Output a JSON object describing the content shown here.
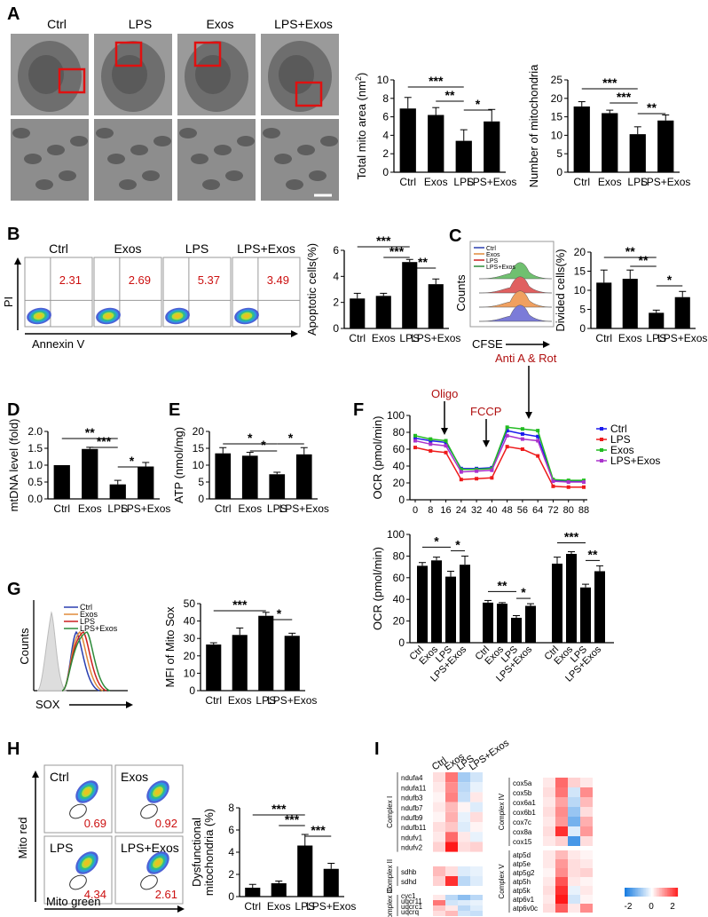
{
  "panels": {
    "A": {
      "letter": "A",
      "groups": [
        "Ctrl",
        "LPS",
        "Exos",
        "LPS+Exos"
      ],
      "area_chart": {
        "type": "bar",
        "ylabel": "Total mito area (nm",
        "ylabel_sup": "2",
        "ylabel_close": ")",
        "categories": [
          "Ctrl",
          "Exos",
          "LPS",
          "LPS+Exos"
        ],
        "values": [
          6.9,
          6.2,
          3.4,
          5.5
        ],
        "errors": [
          1.2,
          0.8,
          1.2,
          1.3
        ],
        "ylim": [
          0,
          10
        ],
        "ticks": [
          "0",
          "2",
          "4",
          "6",
          "8",
          "10"
        ],
        "sig": [
          "***",
          "**",
          "*"
        ]
      },
      "count_chart": {
        "type": "bar",
        "ylabel": "Number of mitochondria",
        "categories": [
          "Ctrl",
          "Exos",
          "LPS",
          "LPS+Exos"
        ],
        "values": [
          17.8,
          16.0,
          10.3,
          14.0
        ],
        "errors": [
          1.3,
          0.8,
          2.0,
          1.5
        ],
        "ylim": [
          0,
          25
        ],
        "ticks": [
          "0",
          "5",
          "10",
          "15",
          "20",
          "25"
        ],
        "sig": [
          "***",
          "***",
          "**"
        ]
      }
    },
    "B": {
      "letter": "B",
      "flow_titles": [
        "Ctrl",
        "Exos",
        "LPS",
        "LPS+Exos"
      ],
      "flow_values": [
        "2.31",
        "2.69",
        "5.37",
        "3.49"
      ],
      "yaxis": "PI",
      "xaxis": "Annexin V",
      "chart": {
        "type": "bar",
        "ylabel": "Apoptotic cells(%)",
        "categories": [
          "Ctrl",
          "Exos",
          "LPS",
          "LPS+Exos"
        ],
        "values": [
          2.3,
          2.5,
          5.1,
          3.4
        ],
        "errors": [
          0.4,
          0.2,
          0.2,
          0.4
        ],
        "ylim": [
          0,
          6
        ],
        "ticks": [
          "0",
          "2",
          "4",
          "6"
        ],
        "sig": [
          "***",
          "***",
          "**"
        ]
      }
    },
    "C": {
      "letter": "C",
      "legend": [
        "Ctrl",
        "Exos",
        "LPS",
        "LPS+Exos"
      ],
      "legend_colors": [
        "#2a3fb0",
        "#e08a3a",
        "#cc2020",
        "#2e8b3a"
      ],
      "yaxis": "Counts",
      "xaxis": "CFSE",
      "chart": {
        "type": "bar",
        "ylabel": "Divided cells(%)",
        "categories": [
          "Ctrl",
          "Exos",
          "LPS",
          "LPS+Exos"
        ],
        "values": [
          12.0,
          13.0,
          4.1,
          8.2
        ],
        "errors": [
          3.3,
          2.3,
          0.7,
          1.5
        ],
        "ylim": [
          0,
          20
        ],
        "ticks": [
          "0",
          "5",
          "10",
          "15",
          "20"
        ],
        "sig": [
          "**",
          "**",
          "*"
        ]
      }
    },
    "D": {
      "letter": "D",
      "chart": {
        "type": "bar",
        "ylabel": "mtDNA level (fold)",
        "categories": [
          "Ctrl",
          "Exos",
          "LPS",
          "LPS+Exos"
        ],
        "values": [
          1.0,
          1.48,
          0.43,
          0.96
        ],
        "errors": [
          0.0,
          0.05,
          0.12,
          0.12
        ],
        "ylim": [
          0,
          2.0
        ],
        "ticks": [
          "0.0",
          "0.5",
          "1.0",
          "1.5",
          "2.0"
        ],
        "sig": [
          "**",
          "***",
          "*"
        ]
      }
    },
    "E": {
      "letter": "E",
      "chart": {
        "type": "bar",
        "ylabel": "ATP (nmol/mg)",
        "categories": [
          "Ctrl",
          "Exos",
          "LPS",
          "LPS+Exos"
        ],
        "values": [
          13.5,
          12.8,
          7.3,
          13.2
        ],
        "errors": [
          1.7,
          1.0,
          0.6,
          2.0
        ],
        "ylim": [
          0,
          20
        ],
        "ticks": [
          "0",
          "5",
          "10",
          "15",
          "20"
        ],
        "sig": [
          "*",
          "*",
          "*"
        ]
      }
    },
    "F": {
      "letter": "F",
      "annotations": [
        "Oligo",
        "FCCP",
        "Anti A & Rot"
      ],
      "line_chart": {
        "type": "line",
        "ylabel": "OCR (pmol/min)",
        "x": [
          0,
          8,
          16,
          24,
          32,
          40,
          48,
          56,
          64,
          72,
          80,
          88
        ],
        "x_ticks": [
          "0",
          "8",
          "16",
          "24",
          "32",
          "40",
          "48",
          "56",
          "64",
          "72",
          "80",
          "88"
        ],
        "ylim": [
          0,
          100
        ],
        "ticks": [
          "0",
          "20",
          "40",
          "60",
          "80",
          "100"
        ],
        "series": [
          {
            "name": "Ctrl",
            "color": "#1a1aee",
            "values": [
              73,
              70,
              68,
              37,
              37,
              38,
              82,
              78,
              75,
              23,
              22,
              22
            ]
          },
          {
            "name": "LPS",
            "color": "#ee1a1a",
            "values": [
              62,
              58,
              56,
              24,
              25,
              26,
              63,
              60,
              52,
              16,
              15,
              15
            ]
          },
          {
            "name": "Exos",
            "color": "#22bb22",
            "values": [
              76,
              72,
              70,
              36,
              36,
              37,
              86,
              84,
              82,
              24,
              23,
              23
            ]
          },
          {
            "name": "LPS+Exos",
            "color": "#aa33cc",
            "values": [
              70,
              66,
              64,
              33,
              34,
              35,
              76,
              72,
              70,
              22,
              21,
              21
            ]
          }
        ]
      },
      "bar_chart": {
        "type": "bar",
        "ylabel": "OCR (pmol/min)",
        "categories": [
          "Ctrl",
          "Exos",
          "LPS",
          "LPS+Exos"
        ],
        "groups": [
          {
            "values": [
              71,
              76,
              61,
              72
            ],
            "errors": [
              3,
              3,
              5,
              8
            ],
            "sig": [
              "*",
              "*"
            ]
          },
          {
            "values": [
              37,
              36,
              23,
              34
            ],
            "errors": [
              2,
              1,
              2,
              2
            ],
            "sig": [
              "**",
              "*"
            ]
          },
          {
            "values": [
              73,
              82,
              51,
              66
            ],
            "errors": [
              6,
              2,
              3,
              5
            ],
            "sig": [
              "***",
              "**"
            ]
          }
        ],
        "ylim": [
          0,
          100
        ],
        "ticks": [
          "0",
          "20",
          "40",
          "60",
          "80",
          "100"
        ]
      }
    },
    "G": {
      "letter": "G",
      "legend": [
        "Ctrl",
        "Exos",
        "LPS",
        "LPS+Exos"
      ],
      "legend_colors": [
        "#2a3fb0",
        "#e08a3a",
        "#cc2020",
        "#2e8b3a"
      ],
      "yaxis": "Counts",
      "xaxis": "SOX",
      "chart": {
        "type": "bar",
        "ylabel": "MFI of Mito Sox",
        "categories": [
          "Ctrl",
          "Exos",
          "LPS",
          "LPS+Exos"
        ],
        "values": [
          26.5,
          32.0,
          43.0,
          31.5
        ],
        "errors": [
          1.0,
          4.0,
          2.0,
          1.5
        ],
        "ylim": [
          0,
          50
        ],
        "ticks": [
          "0",
          "10",
          "20",
          "30",
          "40",
          "50"
        ],
        "sig": [
          "***",
          "*"
        ]
      }
    },
    "H": {
      "letter": "H",
      "flow_titles": [
        "Ctrl",
        "Exos",
        "LPS",
        "LPS+Exos"
      ],
      "flow_values": [
        "0.69",
        "0.92",
        "4.34",
        "2.61"
      ],
      "yaxis": "Mito red",
      "xaxis": "Mito green",
      "chart": {
        "type": "bar",
        "ylabel": "Dysfunctional",
        "ylabel2": "mitochondria (%)",
        "categories": [
          "Ctrl",
          "Exos",
          "LPS",
          "LPS+Exos"
        ],
        "values": [
          0.8,
          1.2,
          4.6,
          2.5
        ],
        "errors": [
          0.3,
          0.2,
          1.0,
          0.5
        ],
        "ylim": [
          0,
          8
        ],
        "ticks": [
          "0",
          "2",
          "4",
          "6",
          "8"
        ],
        "sig": [
          "***",
          "***",
          "***"
        ]
      }
    },
    "I": {
      "letter": "I",
      "columns": [
        "Ctrl",
        "Exos",
        "LPS",
        "LPS+Exos"
      ],
      "complex_I": {
        "label": "Complex I",
        "genes": [
          "ndufa4",
          "ndufa11",
          "ndufb3",
          "ndufb7",
          "ndufb9",
          "ndufb11",
          "ndufv1",
          "ndufv2"
        ],
        "values": [
          [
            0.3,
            1.2,
            -0.8,
            -0.4
          ],
          [
            0.2,
            1.0,
            -0.6,
            -0.2
          ],
          [
            0.1,
            1.1,
            -0.5,
            0.2
          ],
          [
            0.2,
            0.6,
            0.1,
            -0.3
          ],
          [
            0.1,
            0.7,
            -0.2,
            0.3
          ],
          [
            0.3,
            0.5,
            -0.3,
            0.1
          ],
          [
            0.2,
            1.3,
            0.2,
            -0.2
          ],
          [
            0.4,
            2.0,
            0.3,
            0.4
          ]
        ]
      },
      "complex_II": {
        "label": "Complex II",
        "genes": [
          "sdhb",
          "sdhd"
        ],
        "values": [
          [
            0.6,
            0.3,
            -0.3,
            -0.2
          ],
          [
            0.4,
            1.8,
            -0.6,
            -0.3
          ]
        ]
      },
      "complex_III": {
        "label": "Complex III",
        "genes": [
          "cyc1",
          "uqcr11",
          "uqcrc1",
          "uqcrq"
        ],
        "values": [
          [
            0.2,
            -0.6,
            -1.0,
            -0.6
          ],
          [
            1.2,
            -0.4,
            -0.3,
            -0.2
          ],
          [
            0.5,
            0.2,
            -0.6,
            -0.3
          ],
          [
            0.3,
            0.6,
            -0.4,
            -0.5
          ]
        ]
      },
      "complex_IV": {
        "label": "Complex IV",
        "genes": [
          "cox5a",
          "cox5b",
          "cox6a1",
          "cox6b1",
          "cox7c",
          "cox8a",
          "cox15"
        ],
        "values": [
          [
            0.2,
            1.3,
            0.4,
            0.2
          ],
          [
            0.3,
            1.2,
            -0.4,
            1.0
          ],
          [
            0.2,
            0.8,
            -0.6,
            0.6
          ],
          [
            0.3,
            1.0,
            -0.9,
            0.3
          ],
          [
            0.2,
            0.9,
            -1.2,
            0.7
          ],
          [
            0.3,
            1.8,
            -0.3,
            0.9
          ],
          [
            0.2,
            0.4,
            -1.6,
            0.3
          ]
        ]
      },
      "complex_V": {
        "label": "Complex V",
        "genes": [
          "atp5d",
          "atp5e",
          "atp5g2",
          "atp5h",
          "atp5k",
          "atp6v1",
          "atp6v0c"
        ],
        "values": [
          [
            0.2,
            0.6,
            0.2,
            0.1
          ],
          [
            0.2,
            0.9,
            0.3,
            0.2
          ],
          [
            0.1,
            1.0,
            0.3,
            0.4
          ],
          [
            0.2,
            1.5,
            0.2,
            0.1
          ],
          [
            0.3,
            1.8,
            -0.2,
            0.2
          ],
          [
            0.2,
            2.0,
            -0.4,
            0.1
          ],
          [
            0.3,
            1.4,
            0.2,
            1.0
          ]
        ]
      },
      "colorbar_ticks": [
        "-2",
        "0",
        "2"
      ]
    }
  }
}
